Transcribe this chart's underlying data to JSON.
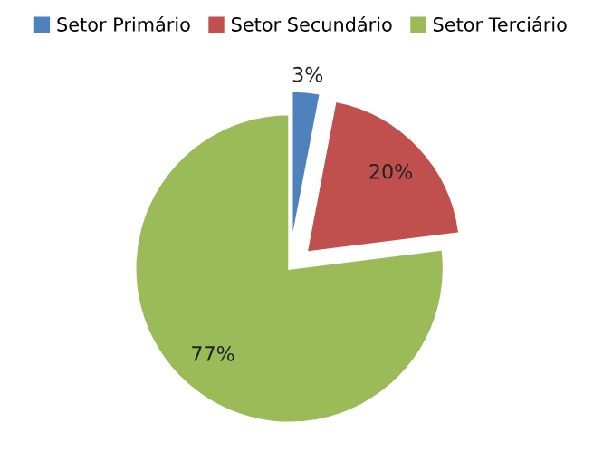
{
  "chart_data": {
    "type": "pie",
    "categories": [
      "Setor Primário",
      "Setor Secundário",
      "Setor Terciário"
    ],
    "values": [
      3,
      20,
      77
    ],
    "colors": [
      "#4f81bd",
      "#c0504d",
      "#9bbb59"
    ],
    "value_labels": [
      "3%",
      "20%",
      "77%"
    ],
    "legend": "top"
  }
}
